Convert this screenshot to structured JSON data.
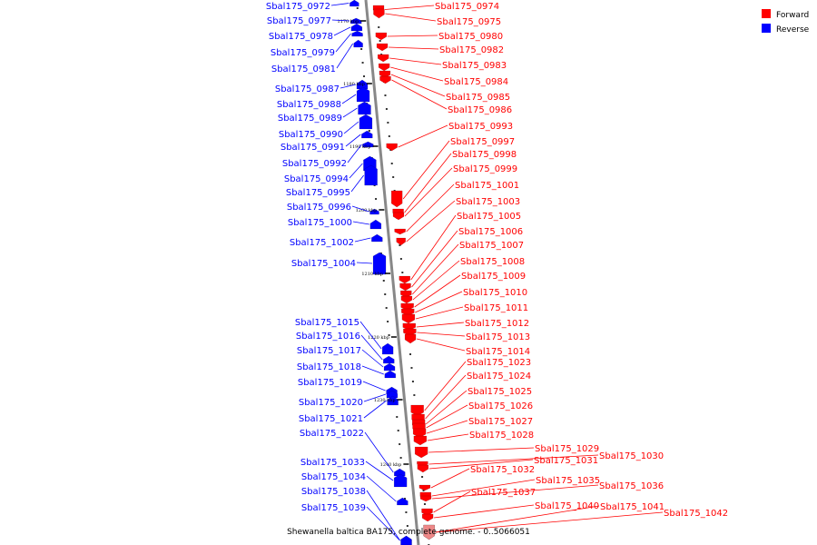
{
  "caption": "Shewanella baltica BA175, complete genome. - 0..5066051",
  "legend": [
    {
      "label": "Forward",
      "color": "#ff0000"
    },
    {
      "label": "Reverse",
      "color": "#0000ff"
    }
  ],
  "colors": {
    "forward": "#ff0000",
    "reverse": "#0000ff",
    "forward_light": "#ee8888",
    "backbone": "#888888"
  },
  "position_ticks": [
    "1170 kbp",
    "1180 kbp",
    "1190 kbp",
    "1200 kbp",
    "1210 kbp",
    "1220 kbp",
    "1230 kbp",
    "1240 kbp"
  ],
  "forward_genes": [
    "Sbal175_0974",
    "Sbal175_0975",
    "Sbal175_0980",
    "Sbal175_0982",
    "Sbal175_0983",
    "Sbal175_0984",
    "Sbal175_0985",
    "Sbal175_0986",
    "Sbal175_0993",
    "Sbal175_0997",
    "Sbal175_0998",
    "Sbal175_0999",
    "Sbal175_1001",
    "Sbal175_1003",
    "Sbal175_1005",
    "Sbal175_1006",
    "Sbal175_1007",
    "Sbal175_1008",
    "Sbal175_1009",
    "Sbal175_1010",
    "Sbal175_1011",
    "Sbal175_1012",
    "Sbal175_1013",
    "Sbal175_1014",
    "Sbal175_1023",
    "Sbal175_1024",
    "Sbal175_1025",
    "Sbal175_1026",
    "Sbal175_1027",
    "Sbal175_1028",
    "Sbal175_1029",
    "Sbal175_1030",
    "Sbal175_1031",
    "Sbal175_1032",
    "Sbal175_1035",
    "Sbal175_1036",
    "Sbal175_1037",
    "Sbal175_1040",
    "Sbal175_1041",
    "Sbal175_1042"
  ],
  "reverse_genes": [
    "Sbal175_0972",
    "Sbal175_0977",
    "Sbal175_0978",
    "Sbal175_0979",
    "Sbal175_0981",
    "Sbal175_0987",
    "Sbal175_0988",
    "Sbal175_0989",
    "Sbal175_0990",
    "Sbal175_0991",
    "Sbal175_0992",
    "Sbal175_0994",
    "Sbal175_0995",
    "Sbal175_0996",
    "Sbal175_1000",
    "Sbal175_1002",
    "Sbal175_1004",
    "Sbal175_1015",
    "Sbal175_1016",
    "Sbal175_1017",
    "Sbal175_1018",
    "Sbal175_1019",
    "Sbal175_1020",
    "Sbal175_1021",
    "Sbal175_1022",
    "Sbal175_1033",
    "Sbal175_1034",
    "Sbal175_1038",
    "Sbal175_1039"
  ]
}
